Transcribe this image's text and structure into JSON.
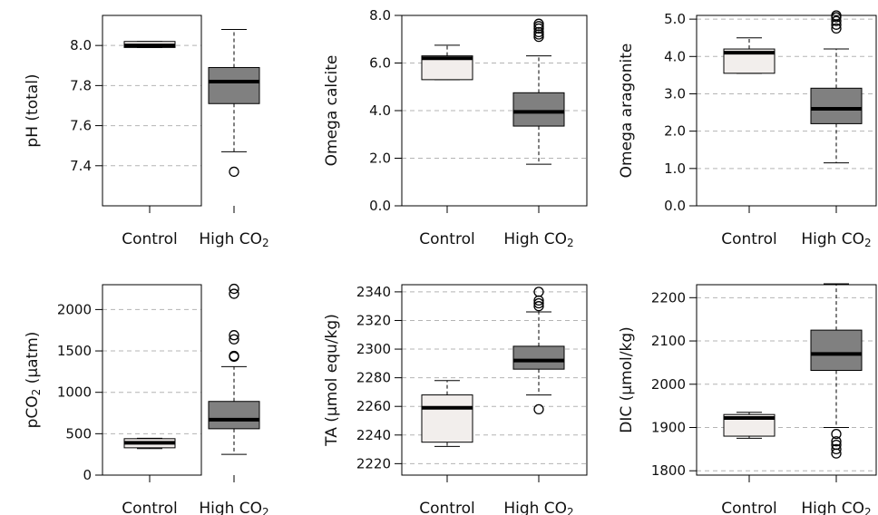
{
  "chart_data": [
    {
      "type": "box",
      "ylabel": "pH (total)",
      "ylim": [
        7.2,
        8.15
      ],
      "yticks": [
        7.4,
        7.6,
        7.8,
        8.0
      ],
      "decimals": 1,
      "grid": "dashed",
      "categories": [
        "Control",
        "High CO2"
      ],
      "boxes": [
        {
          "name": "Control",
          "whisker_low": 7.99,
          "q1": 7.99,
          "median": 8.0,
          "q3": 8.02,
          "whisker_high": 8.02,
          "outliers": []
        },
        {
          "name": "High CO2",
          "whisker_low": 7.47,
          "q1": 7.71,
          "median": 7.82,
          "q3": 7.89,
          "whisker_high": 8.08,
          "outliers": [
            7.37
          ]
        }
      ]
    },
    {
      "type": "box",
      "ylabel": "Omega calcite",
      "ylim": [
        0,
        8.0
      ],
      "yticks": [
        0.0,
        2.0,
        4.0,
        6.0,
        8.0
      ],
      "decimals": 1,
      "grid": "dashed",
      "categories": [
        "Control",
        "High CO2"
      ],
      "boxes": [
        {
          "name": "Control",
          "whisker_low": 5.3,
          "q1": 5.3,
          "median": 6.2,
          "q3": 6.3,
          "whisker_high": 6.75,
          "outliers": []
        },
        {
          "name": "High CO2",
          "whisker_low": 1.75,
          "q1": 3.35,
          "median": 3.95,
          "q3": 4.75,
          "whisker_high": 6.3,
          "outliers": [
            7.1,
            7.2,
            7.3,
            7.45,
            7.55,
            7.65
          ]
        }
      ]
    },
    {
      "type": "box",
      "ylabel": "Omega aragonite",
      "ylim": [
        0,
        5.1
      ],
      "yticks": [
        0.0,
        1.0,
        2.0,
        3.0,
        4.0,
        5.0
      ],
      "decimals": 1,
      "grid": "dashed",
      "categories": [
        "Control",
        "High CO2"
      ],
      "boxes": [
        {
          "name": "Control",
          "whisker_low": 3.55,
          "q1": 3.55,
          "median": 4.1,
          "q3": 4.2,
          "whisker_high": 4.5,
          "outliers": []
        },
        {
          "name": "High CO2",
          "whisker_low": 1.15,
          "q1": 2.2,
          "median": 2.6,
          "q3": 3.15,
          "whisker_high": 4.2,
          "outliers": [
            4.75,
            4.85,
            4.95,
            5.05,
            5.1
          ]
        }
      ]
    },
    {
      "type": "box",
      "ylabel": "pCO2 (µatm)",
      "ylim": [
        0,
        2300
      ],
      "yticks": [
        0,
        500,
        1000,
        1500,
        2000
      ],
      "decimals": 0,
      "grid": "dashed",
      "categories": [
        "Control",
        "High CO2"
      ],
      "boxes": [
        {
          "name": "Control",
          "whisker_low": 320,
          "q1": 330,
          "median": 390,
          "q3": 440,
          "whisker_high": 445,
          "outliers": []
        },
        {
          "name": "High CO2",
          "whisker_low": 250,
          "q1": 560,
          "median": 670,
          "q3": 890,
          "whisker_high": 1310,
          "outliers": [
            1430,
            1440,
            1640,
            1690,
            2190,
            2250
          ]
        }
      ]
    },
    {
      "type": "box",
      "ylabel": "TA (µmol equ/kg)",
      "ylim": [
        2212,
        2345
      ],
      "yticks": [
        2220,
        2240,
        2260,
        2280,
        2300,
        2320,
        2340
      ],
      "decimals": 0,
      "grid": "dashed",
      "categories": [
        "Control",
        "High CO2"
      ],
      "boxes": [
        {
          "name": "Control",
          "whisker_low": 2232,
          "q1": 2235,
          "median": 2259,
          "q3": 2268,
          "whisker_high": 2278,
          "outliers": []
        },
        {
          "name": "High CO2",
          "whisker_low": 2268,
          "q1": 2286,
          "median": 2292,
          "q3": 2302,
          "whisker_high": 2326,
          "outliers": [
            2258,
            2330,
            2332,
            2334,
            2340
          ]
        }
      ]
    },
    {
      "type": "box",
      "ylabel": "DIC (µmol/kg)",
      "ylim": [
        1790,
        2230
      ],
      "yticks": [
        1800,
        1900,
        2000,
        2100,
        2200
      ],
      "decimals": 0,
      "grid": "dashed",
      "categories": [
        "Control",
        "High CO2"
      ],
      "boxes": [
        {
          "name": "Control",
          "whisker_low": 1875,
          "q1": 1880,
          "median": 1922,
          "q3": 1930,
          "whisker_high": 1935,
          "outliers": []
        },
        {
          "name": "High CO2",
          "whisker_low": 1900,
          "q1": 2032,
          "median": 2070,
          "q3": 2125,
          "whisker_high": 2232,
          "outliers": [
            1840,
            1850,
            1860,
            1868,
            1885
          ]
        }
      ]
    }
  ],
  "colors": {
    "control_fill": "#f2eeec",
    "high_fill": "#808080",
    "median": "#000000",
    "grid": "#b4b4b4"
  }
}
